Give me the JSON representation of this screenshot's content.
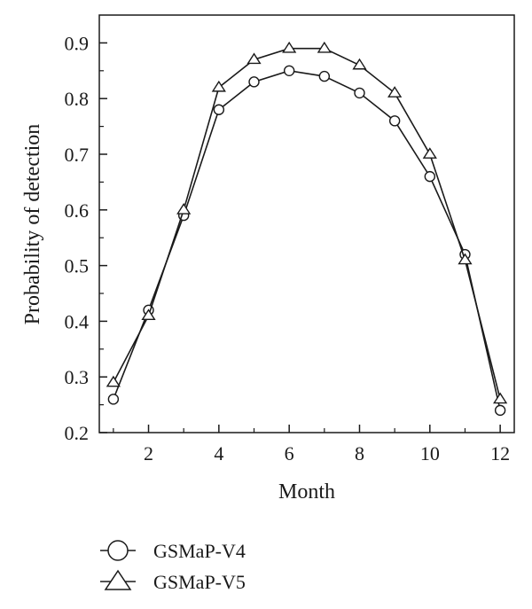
{
  "chart_data": {
    "type": "line",
    "title": "",
    "xlabel": "Month",
    "ylabel": "Probability of detection",
    "x": [
      1,
      2,
      3,
      4,
      5,
      6,
      7,
      8,
      9,
      10,
      11,
      12
    ],
    "xlim": [
      0.6,
      12.4
    ],
    "ylim": [
      0.2,
      0.95
    ],
    "xticks": [
      2,
      4,
      6,
      8,
      10,
      12
    ],
    "yticks": [
      0.2,
      0.3,
      0.4,
      0.5,
      0.6,
      0.7,
      0.8,
      0.9
    ],
    "xtick_labels": [
      "2",
      "4",
      "6",
      "8",
      "10",
      "12"
    ],
    "ytick_labels": [
      "0.2",
      "0.3",
      "0.4",
      "0.5",
      "0.6",
      "0.7",
      "0.8",
      "0.9"
    ],
    "grid": false,
    "legend_position": "bottom-left",
    "series": [
      {
        "name": "GSMaP-V4",
        "marker": "circle",
        "values": [
          0.26,
          0.42,
          0.59,
          0.78,
          0.83,
          0.85,
          0.84,
          0.81,
          0.76,
          0.66,
          0.52,
          0.24
        ]
      },
      {
        "name": "GSMaP-V5",
        "marker": "triangle",
        "values": [
          0.29,
          0.41,
          0.6,
          0.82,
          0.87,
          0.89,
          0.89,
          0.86,
          0.81,
          0.7,
          0.51,
          0.26
        ]
      }
    ],
    "colors": {
      "line": "#1a1a1a",
      "marker_fill": "#ffffff"
    }
  }
}
